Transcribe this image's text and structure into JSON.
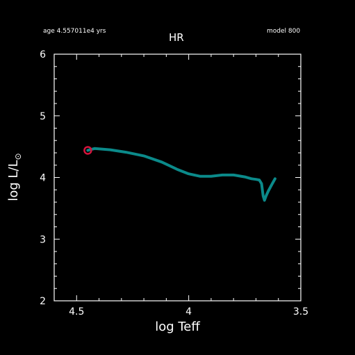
{
  "header": {
    "age_text": "age 4.557011e4 yrs",
    "model_text": "model 800"
  },
  "chart_data": {
    "type": "line",
    "title": "HR",
    "xlabel": "log Teff",
    "ylabel_main": "log L/L",
    "ylabel_sub": "⊙",
    "xlim": [
      4.6,
      3.5
    ],
    "ylim": [
      2,
      6
    ],
    "x_ticks": [
      4.5,
      4,
      3.5
    ],
    "x_tick_labels": [
      "4.5",
      "4",
      "3.5"
    ],
    "y_ticks": [
      2,
      3,
      4,
      5,
      6
    ],
    "y_tick_labels": [
      "2",
      "3",
      "4",
      "5",
      "6"
    ],
    "series": [
      {
        "color": "#0b8a8a",
        "x": [
          4.45,
          4.42,
          4.35,
          4.28,
          4.2,
          4.12,
          4.05,
          4.0,
          3.95,
          3.9,
          3.85,
          3.8,
          3.75,
          3.72,
          3.7,
          3.685,
          3.675,
          3.668,
          3.662,
          3.655,
          3.645,
          3.63,
          3.615
        ],
        "y": [
          4.44,
          4.47,
          4.45,
          4.41,
          4.35,
          4.25,
          4.13,
          4.06,
          4.02,
          4.02,
          4.04,
          4.04,
          4.01,
          3.98,
          3.97,
          3.96,
          3.9,
          3.7,
          3.63,
          3.7,
          3.78,
          3.88,
          3.98
        ]
      }
    ],
    "marker": {
      "x": 4.45,
      "y": 4.44,
      "color": "#d4143c",
      "shape": "circle"
    }
  }
}
